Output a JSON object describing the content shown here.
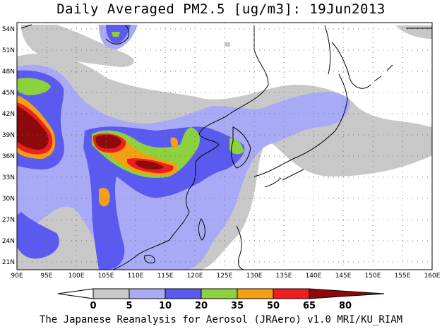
{
  "title": "Daily Averaged PM2.5 [ug/m3]: 19Jun2013",
  "credit": "The Japanese Reanalysis for Aerosol (JRAero) v1.0 MRI/KU_RIAM",
  "lon_ticks": [
    "90E",
    "95E",
    "100E",
    "105E",
    "110E",
    "115E",
    "120E",
    "125E",
    "130E",
    "135E",
    "140E",
    "145E",
    "150E",
    "155E",
    "160E"
  ],
  "lat_ticks": [
    "54N",
    "51N",
    "48N",
    "45N",
    "42N",
    "39N",
    "36N",
    "33N",
    "30N",
    "27N",
    "24N",
    "21N"
  ],
  "colorbar": {
    "levels": [
      "0",
      "5",
      "10",
      "20",
      "35",
      "50",
      "65",
      "80"
    ],
    "colors": [
      "#ffffff",
      "#c8c8c8",
      "#a8aaf5",
      "#5a5af0",
      "#8cd23c",
      "#f5a014",
      "#f01e1e",
      "#8c0a0a"
    ]
  },
  "chart_data": {
    "type": "heatmap",
    "title": "Daily Averaged PM2.5 [ug/m3]: 19Jun2013",
    "variable": "PM2.5",
    "units": "ug/m3",
    "date": "19Jun2013",
    "lon_range": [
      90,
      160
    ],
    "lat_range": [
      20,
      55
    ],
    "levels": [
      0,
      5,
      10,
      20,
      35,
      50,
      65,
      80
    ],
    "max_regions": [
      {
        "region": "western basin ~90-96E, 37-42N",
        "level": ">80"
      },
      {
        "region": "~105-107E, 38-39N",
        "level": ">80"
      },
      {
        "region": "~112-114E, 35N",
        "level": ">80"
      }
    ]
  }
}
